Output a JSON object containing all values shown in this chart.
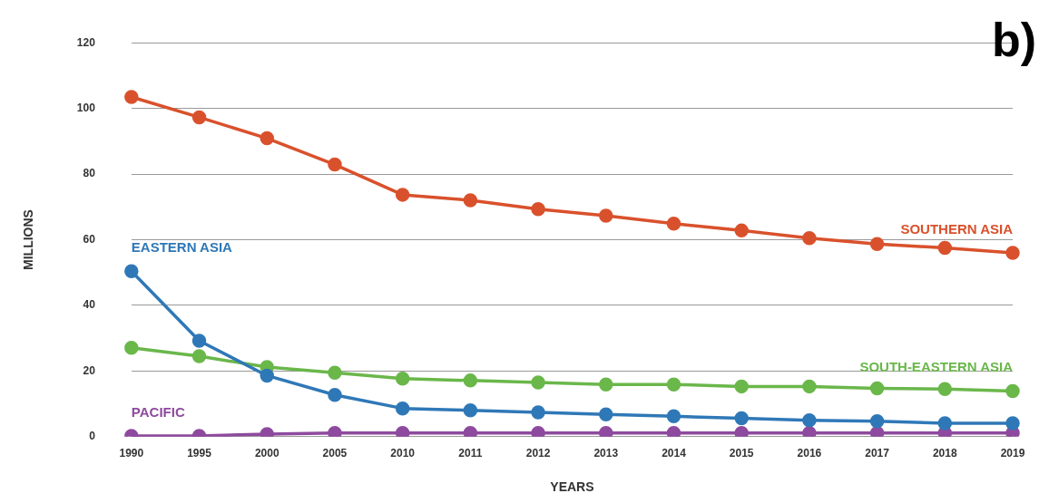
{
  "chart_data": {
    "type": "line",
    "title": "b)",
    "xlabel": "YEARS",
    "ylabel": "MILLIONS",
    "categories": [
      "1990",
      "1995",
      "2000",
      "2005",
      "2010",
      "2011",
      "2012",
      "2013",
      "2014",
      "2015",
      "2016",
      "2017",
      "2018",
      "2019"
    ],
    "series": [
      {
        "name": "SOUTHERN ASIA",
        "color": "#d9512c",
        "values": [
          103.5,
          97.3,
          90.9,
          82.9,
          73.7,
          72,
          69.3,
          67.3,
          64.9,
          62.8,
          60.5,
          58.7,
          57.5,
          56
        ]
      },
      {
        "name": "EASTERN ASIA",
        "color": "#2f78b7",
        "values": [
          50.4,
          29.2,
          18.6,
          12.7,
          8.6,
          8,
          7.4,
          6.8,
          6.2,
          5.6,
          5,
          4.7,
          4.1,
          4.1
        ]
      },
      {
        "name": "SOUTH-EASTERN ASIA",
        "color": "#6ab74a",
        "values": [
          27.1,
          24.5,
          21.2,
          19.5,
          17.7,
          17.1,
          16.5,
          15.9,
          15.9,
          15.3,
          15.3,
          14.7,
          14.5,
          13.9
        ]
      },
      {
        "name": "PACIFIC",
        "color": "#8e4a9e",
        "values": [
          0.2,
          0.2,
          0.8,
          1.1,
          1.1,
          1.1,
          1.1,
          1.1,
          1.1,
          1.1,
          1.1,
          1.1,
          1.1,
          1.1
        ]
      }
    ],
    "ylim": [
      0,
      120
    ],
    "yticks": [
      0,
      20,
      40,
      60,
      80,
      100,
      120
    ],
    "grid": "y",
    "legend": false,
    "marker": "circle",
    "line_style": "solid"
  }
}
